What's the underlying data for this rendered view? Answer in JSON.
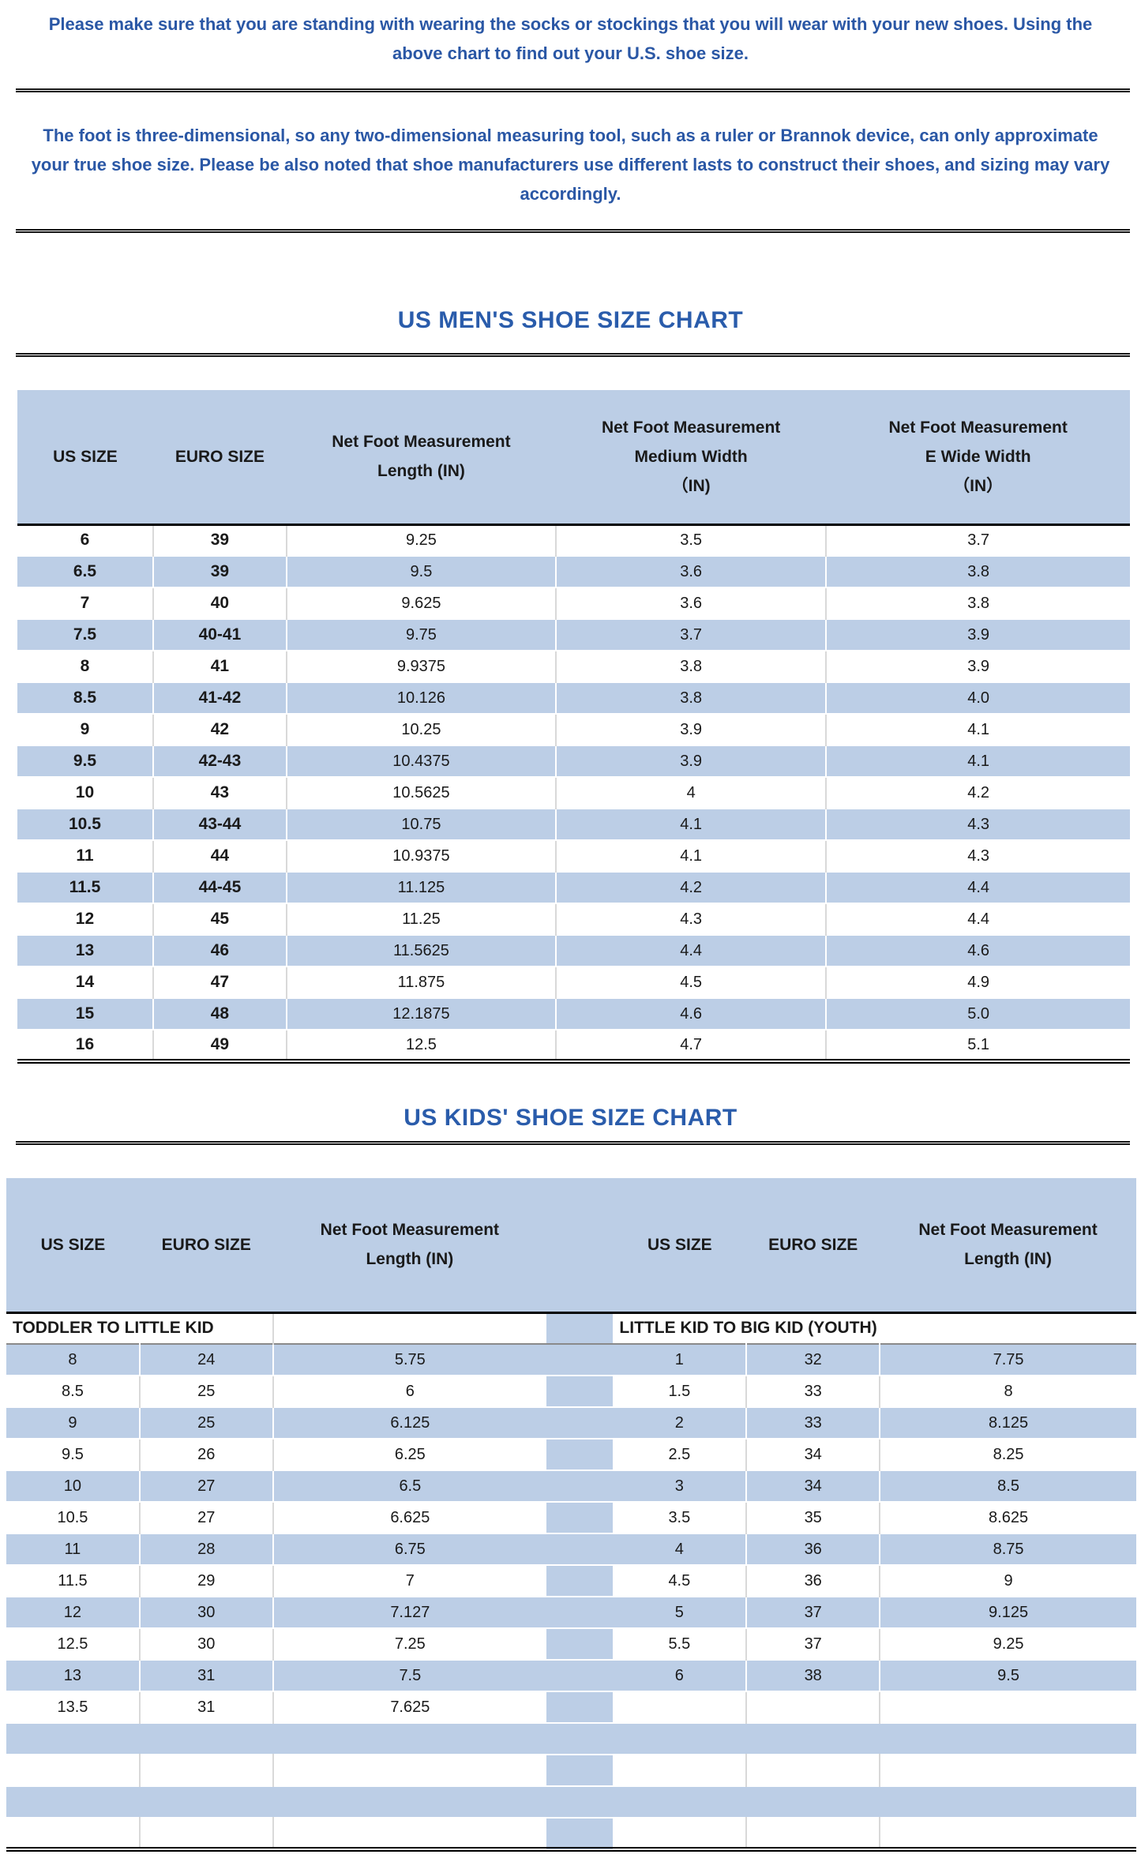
{
  "intro": {
    "paragraph1": "Please make sure that you are standing with wearing the socks or stockings that you will wear with your new shoes. Using the above chart to find out your U.S. shoe size.",
    "paragraph2": "The foot is three-dimensional, so any two-dimensional measuring tool, such as a ruler or Brannok device, can only approximate your true shoe size. Please be also noted that shoe manufacturers use different lasts to construct their shoes, and sizing may vary accordingly."
  },
  "colors": {
    "accent_text_blue": "#2a57a5",
    "title_blue": "#2a5cab",
    "table_fill_blue": "#bccee6",
    "row_white": "#ffffff"
  },
  "chart_data": [
    {
      "type": "table",
      "title": "US MEN'S SHOE SIZE CHART",
      "headers": [
        "US SIZE",
        "EURO SIZE",
        "Net Foot Measurement\nLength (IN)",
        "Net Foot Measurement\nMedium Width\n（IN)",
        "Net Foot Measurement\nE Wide Width\n（IN）"
      ],
      "rows": [
        [
          "6",
          "39",
          "9.25",
          "3.5",
          "3.7"
        ],
        [
          "6.5",
          "39",
          "9.5",
          "3.6",
          "3.8"
        ],
        [
          "7",
          "40",
          "9.625",
          "3.6",
          "3.8"
        ],
        [
          "7.5",
          "40-41",
          "9.75",
          "3.7",
          "3.9"
        ],
        [
          "8",
          "41",
          "9.9375",
          "3.8",
          "3.9"
        ],
        [
          "8.5",
          "41-42",
          "10.126",
          "3.8",
          "4.0"
        ],
        [
          "9",
          "42",
          "10.25",
          "3.9",
          "4.1"
        ],
        [
          "9.5",
          "42-43",
          "10.4375",
          "3.9",
          "4.1"
        ],
        [
          "10",
          "43",
          "10.5625",
          "4",
          "4.2"
        ],
        [
          "10.5",
          "43-44",
          "10.75",
          "4.1",
          "4.3"
        ],
        [
          "11",
          "44",
          "10.9375",
          "4.1",
          "4.3"
        ],
        [
          "11.5",
          "44-45",
          "11.125",
          "4.2",
          "4.4"
        ],
        [
          "12",
          "45",
          "11.25",
          "4.3",
          "4.4"
        ],
        [
          "13",
          "46",
          "11.5625",
          "4.4",
          "4.6"
        ],
        [
          "14",
          "47",
          "11.875",
          "4.5",
          "4.9"
        ],
        [
          "15",
          "48",
          "12.1875",
          "4.6",
          "5.0"
        ],
        [
          "16",
          "49",
          "12.5",
          "4.7",
          "5.1"
        ]
      ]
    },
    {
      "type": "table",
      "title": "US KIDS' SHOE SIZE CHART",
      "headers_left": [
        "US SIZE",
        "EURO SIZE",
        "Net Foot Measurement\nLength (IN)"
      ],
      "headers_right": [
        "US SIZE",
        "EURO SIZE",
        "Net Foot Measurement\nLength (IN)"
      ],
      "left_section_label": "TODDLER TO LITTLE KID",
      "right_section_label": "LITTLE KID TO BIG KID (YOUTH)",
      "left_rows": [
        [
          "8",
          "24",
          "5.75"
        ],
        [
          "8.5",
          "25",
          "6"
        ],
        [
          "9",
          "25",
          "6.125"
        ],
        [
          "9.5",
          "26",
          "6.25"
        ],
        [
          "10",
          "27",
          "6.5"
        ],
        [
          "10.5",
          "27",
          "6.625"
        ],
        [
          "11",
          "28",
          "6.75"
        ],
        [
          "11.5",
          "29",
          "7"
        ],
        [
          "12",
          "30",
          "7.127"
        ],
        [
          "12.5",
          "30",
          "7.25"
        ],
        [
          "13",
          "31",
          "7.5"
        ],
        [
          "13.5",
          "31",
          "7.625"
        ]
      ],
      "right_rows": [
        [
          "1",
          "32",
          "7.75"
        ],
        [
          "1.5",
          "33",
          "8"
        ],
        [
          "2",
          "33",
          "8.125"
        ],
        [
          "2.5",
          "34",
          "8.25"
        ],
        [
          "3",
          "34",
          "8.5"
        ],
        [
          "3.5",
          "35",
          "8.625"
        ],
        [
          "4",
          "36",
          "8.75"
        ],
        [
          "4.5",
          "36",
          "9"
        ],
        [
          "5",
          "37",
          "9.125"
        ],
        [
          "5.5",
          "37",
          "9.25"
        ],
        [
          "6",
          "38",
          "9.5"
        ],
        [
          "",
          "",
          ""
        ]
      ],
      "trailing_empty_rows": 4
    }
  ]
}
